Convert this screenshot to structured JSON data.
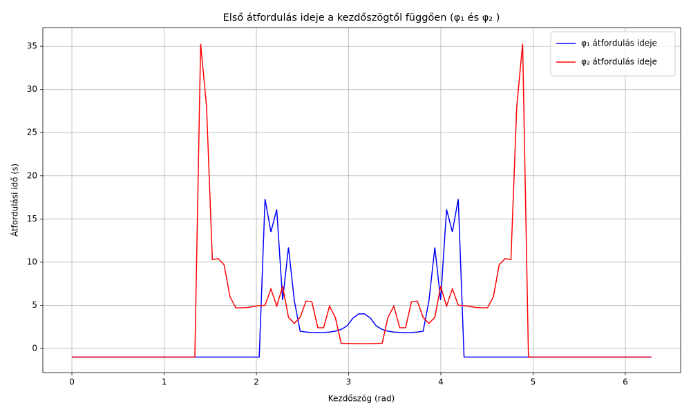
{
  "chart_data": {
    "type": "line",
    "title": "Első átfordulás ideje a kezdőszögtől függően (φ₁  és φ₂ )",
    "x_label": "Kezdőszög (rad)",
    "y_label": "Átfordulási idő (s)",
    "x": [
      0,
      0.063,
      0.127,
      0.19,
      0.254,
      0.317,
      0.381,
      0.444,
      0.508,
      0.571,
      0.635,
      0.698,
      0.762,
      0.825,
      0.889,
      0.952,
      1.015,
      1.079,
      1.142,
      1.206,
      1.269,
      1.333,
      1.396,
      1.46,
      1.523,
      1.587,
      1.65,
      1.714,
      1.777,
      1.841,
      1.904,
      1.967,
      2.031,
      2.094,
      2.158,
      2.221,
      2.285,
      2.348,
      2.412,
      2.475,
      2.539,
      2.602,
      2.666,
      2.729,
      2.793,
      2.856,
      2.919,
      2.983,
      3.046,
      3.11,
      3.173,
      3.237,
      3.3,
      3.364,
      3.427,
      3.491,
      3.554,
      3.618,
      3.681,
      3.744,
      3.808,
      3.871,
      3.935,
      3.998,
      4.062,
      4.125,
      4.189,
      4.252,
      4.316,
      4.379,
      4.443,
      4.506,
      4.57,
      4.633,
      4.696,
      4.76,
      4.823,
      4.887,
      4.95,
      5.014,
      5.077,
      5.141,
      5.204,
      5.268,
      5.331,
      5.395,
      5.458,
      5.521,
      5.585,
      5.648,
      5.712,
      5.775,
      5.839,
      5.902,
      5.966,
      6.029,
      6.093,
      6.156,
      6.22,
      6.283
    ],
    "series": [
      {
        "name": "φ₁ átfordulás ideje",
        "color": "#0000ff",
        "values": [
          -1,
          -1,
          -1,
          -1,
          -1,
          -1,
          -1,
          -1,
          -1,
          -1,
          -1,
          -1,
          -1,
          -1,
          -1,
          -1,
          -1,
          -1,
          -1,
          -1,
          -1,
          -1,
          -1,
          -1,
          -1,
          -1,
          -1,
          -1,
          -1,
          -1,
          -1,
          -1,
          -1,
          17.3,
          13.5,
          16.1,
          5.6,
          11.7,
          5.5,
          2.0,
          1.9,
          1.85,
          1.83,
          1.85,
          1.9,
          2.0,
          2.2,
          2.6,
          3.5,
          4.0,
          4.0,
          3.5,
          2.6,
          2.2,
          2.0,
          1.9,
          1.85,
          1.83,
          1.85,
          1.9,
          2.0,
          5.5,
          11.7,
          5.6,
          16.1,
          13.5,
          17.3,
          -1,
          -1,
          -1,
          -1,
          -1,
          -1,
          -1,
          -1,
          -1,
          -1,
          -1,
          -1,
          -1,
          -1,
          -1,
          -1,
          -1,
          -1,
          -1,
          -1,
          -1,
          -1,
          -1,
          -1,
          -1,
          -1,
          -1,
          -1,
          -1,
          -1,
          -1,
          -1,
          -1
        ]
      },
      {
        "name": "φ₂ átfordulás ideje",
        "color": "#ff0000",
        "values": [
          -1,
          -1,
          -1,
          -1,
          -1,
          -1,
          -1,
          -1,
          -1,
          -1,
          -1,
          -1,
          -1,
          -1,
          -1,
          -1,
          -1,
          -1,
          -1,
          -1,
          -1,
          -1,
          35.3,
          28,
          10.3,
          10.4,
          9.7,
          6.0,
          4.7,
          4.7,
          4.75,
          4.85,
          4.95,
          5.0,
          6.9,
          4.9,
          7.2,
          3.6,
          2.9,
          3.6,
          5.5,
          5.4,
          2.4,
          2.4,
          4.9,
          3.6,
          0.6,
          0.58,
          0.56,
          0.55,
          0.55,
          0.56,
          0.58,
          0.6,
          3.6,
          4.9,
          2.4,
          2.4,
          5.4,
          5.5,
          3.6,
          2.9,
          3.6,
          7.2,
          4.9,
          6.9,
          5.0,
          4.95,
          4.85,
          4.75,
          4.7,
          4.7,
          6.0,
          9.7,
          10.4,
          10.3,
          28,
          35.3,
          -1,
          -1,
          -1,
          -1,
          -1,
          -1,
          -1,
          -1,
          -1,
          -1,
          -1,
          -1,
          -1,
          -1,
          -1,
          -1,
          -1,
          -1,
          -1,
          -1,
          -1,
          -1
        ]
      }
    ],
    "xlim": [
      -0.315,
      6.6
    ],
    "ylim": [
      -2.8,
      37.17
    ],
    "xticks": [
      0,
      1,
      2,
      3,
      4,
      5,
      6
    ],
    "yticks": [
      0,
      5,
      10,
      15,
      20,
      25,
      30,
      35
    ],
    "grid": true,
    "legend": "upper right"
  }
}
